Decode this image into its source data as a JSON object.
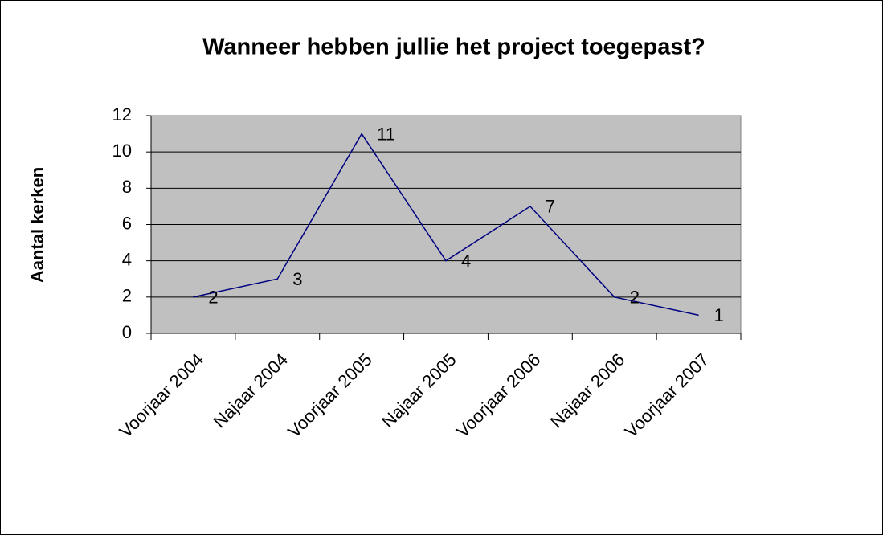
{
  "chart_data": {
    "type": "line",
    "title": "Wanneer hebben jullie het project toegepast?",
    "y_label": "Aantal kerken",
    "categories": [
      "Voorjaar 2004",
      "Najaar 2004",
      "Voorjaar 2005",
      "Najaar 2005",
      "Voorjaar 2006",
      "Najaar 2006",
      "Voorjaar 2007"
    ],
    "values": [
      2,
      3,
      11,
      4,
      7,
      2,
      1
    ],
    "color": "#000080",
    "plot_background": "#c0c0c0",
    "ylim": [
      0,
      12
    ],
    "yticks": [
      0,
      2,
      4,
      6,
      8,
      10,
      12
    ],
    "grid": true
  }
}
